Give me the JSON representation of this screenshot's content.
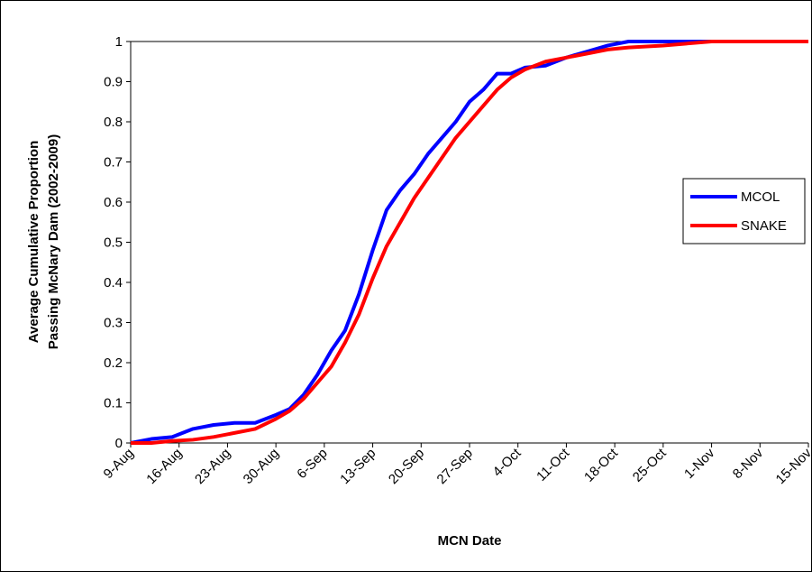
{
  "chart_data": {
    "type": "line",
    "x_label": "MCN Date",
    "y_label": [
      "Average Cumulative Proportion",
      "Passing McNary Dam (2002-2009)"
    ],
    "x": [
      "9-Aug",
      "12-Aug",
      "15-Aug",
      "18-Aug",
      "21-Aug",
      "24-Aug",
      "27-Aug",
      "30-Aug",
      "1-Sep",
      "3-Sep",
      "5-Sep",
      "7-Sep",
      "9-Sep",
      "11-Sep",
      "13-Sep",
      "15-Sep",
      "17-Sep",
      "19-Sep",
      "21-Sep",
      "23-Sep",
      "25-Sep",
      "27-Sep",
      "29-Sep",
      "1-Oct",
      "3-Oct",
      "5-Oct",
      "8-Oct",
      "11-Oct",
      "14-Oct",
      "17-Oct",
      "20-Oct",
      "25-Oct",
      "1-Nov",
      "8-Nov",
      "15-Nov"
    ],
    "series": [
      {
        "name": "MCOL",
        "color": "#0000ff",
        "values": [
          0,
          0.01,
          0.015,
          0.035,
          0.045,
          0.05,
          0.05,
          0.07,
          0.085,
          0.12,
          0.17,
          0.23,
          0.28,
          0.37,
          0.48,
          0.58,
          0.63,
          0.67,
          0.72,
          0.76,
          0.8,
          0.85,
          0.88,
          0.92,
          0.92,
          0.935,
          0.94,
          0.96,
          0.975,
          0.99,
          1,
          1,
          1,
          1,
          1
        ]
      },
      {
        "name": "SNAKE",
        "color": "#ff0000",
        "values": [
          0,
          0,
          0.005,
          0.008,
          0.015,
          0.025,
          0.035,
          0.06,
          0.08,
          0.11,
          0.15,
          0.19,
          0.25,
          0.32,
          0.41,
          0.49,
          0.55,
          0.61,
          0.66,
          0.71,
          0.76,
          0.8,
          0.84,
          0.88,
          0.91,
          0.93,
          0.95,
          0.96,
          0.97,
          0.98,
          0.985,
          0.99,
          1,
          1,
          1
        ]
      }
    ],
    "xlim": [
      "9-Aug",
      "15-Nov"
    ],
    "xticks": [
      "9-Aug",
      "16-Aug",
      "23-Aug",
      "30-Aug",
      "6-Sep",
      "13-Sep",
      "20-Sep",
      "27-Sep",
      "4-Oct",
      "11-Oct",
      "18-Oct",
      "25-Oct",
      "1-Nov",
      "8-Nov",
      "15-Nov"
    ],
    "ylim": [
      0,
      1
    ],
    "yticks": [
      0,
      0.1,
      0.2,
      0.3,
      0.4,
      0.5,
      0.6,
      0.7,
      0.8,
      0.9,
      1
    ],
    "grid": false,
    "legend": "right"
  }
}
